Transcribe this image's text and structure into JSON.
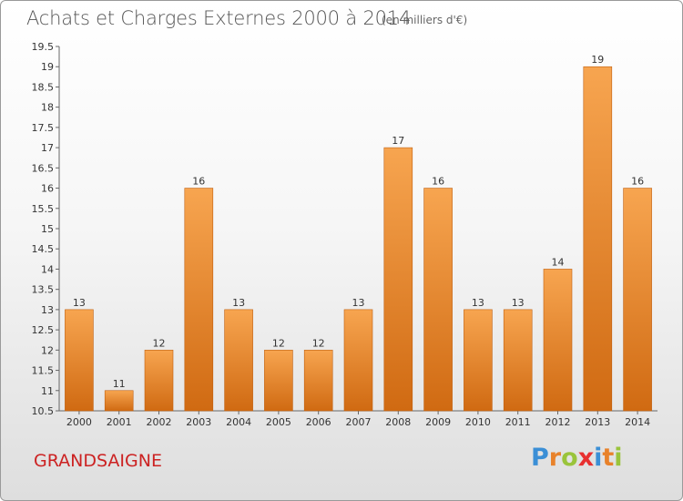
{
  "title": "Achats et Charges Externes 2000 à 2014",
  "subtitle": "(en milliers d'€)",
  "place": "GRANDSAIGNE",
  "logo": {
    "letters": [
      "P",
      "r",
      "o",
      "x",
      "i",
      "t",
      "i"
    ],
    "colors": [
      "#3b8fd6",
      "#e8822b",
      "#9ac43b",
      "#e83030",
      "#3b8fd6",
      "#e8822b",
      "#9ac43b"
    ]
  },
  "chart_data": {
    "type": "bar",
    "title": "Achats et Charges Externes 2000 à 2014",
    "subtitle": "(en milliers d'€)",
    "categories": [
      "2000",
      "2001",
      "2002",
      "2003",
      "2004",
      "2005",
      "2006",
      "2007",
      "2008",
      "2009",
      "2010",
      "2011",
      "2012",
      "2013",
      "2014"
    ],
    "values": [
      13,
      11,
      12,
      16,
      13,
      12,
      12,
      13,
      17,
      16,
      13,
      13,
      14,
      19,
      16
    ],
    "value_labels": [
      "13",
      "11",
      "12",
      "16",
      "13",
      "12",
      "12",
      "13",
      "17",
      "16",
      "13",
      "13",
      "14",
      "19",
      "16"
    ],
    "ylim": [
      10.5,
      19.5
    ],
    "yticks": [
      "10.5",
      "11",
      "11.5",
      "12",
      "12.5",
      "13",
      "13.5",
      "14",
      "14.5",
      "15",
      "15.5",
      "16",
      "16.5",
      "17",
      "17.5",
      "18",
      "18.5",
      "19",
      "19.5"
    ],
    "grid": false,
    "bar_color_top": "#f7a550",
    "bar_color_bottom": "#d06a12"
  }
}
